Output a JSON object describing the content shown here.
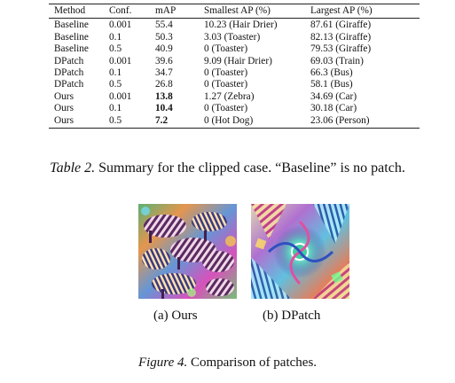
{
  "table": {
    "headers": [
      "Method",
      "Conf.",
      "mAP",
      "Smallest AP (%)",
      "Largest AP (%)"
    ],
    "rows": [
      {
        "method": "Baseline",
        "conf": "0.001",
        "map": "55.4",
        "smallest": "10.23 (Hair Drier)",
        "largest": "87.61 (Giraffe)",
        "bold_map": false
      },
      {
        "method": "Baseline",
        "conf": "0.1",
        "map": "50.3",
        "smallest": "3.03 (Toaster)",
        "largest": "82.13 (Giraffe)",
        "bold_map": false
      },
      {
        "method": "Baseline",
        "conf": "0.5",
        "map": "40.9",
        "smallest": "0 (Toaster)",
        "largest": "79.53 (Giraffe)",
        "bold_map": false
      },
      {
        "method": "DPatch",
        "conf": "0.001",
        "map": "39.6",
        "smallest": "9.09 (Hair Drier)",
        "largest": "69.03 (Train)",
        "bold_map": false
      },
      {
        "method": "DPatch",
        "conf": "0.1",
        "map": "34.7",
        "smallest": "0 (Toaster)",
        "largest": "66.3 (Bus)",
        "bold_map": false
      },
      {
        "method": "DPatch",
        "conf": "0.5",
        "map": "26.8",
        "smallest": "0 (Toaster)",
        "largest": "58.1 (Bus)",
        "bold_map": false
      },
      {
        "method": "Ours",
        "conf": "0.001",
        "map": "13.8",
        "smallest": "1.27 (Zebra)",
        "largest": "34.69 (Car)",
        "bold_map": true
      },
      {
        "method": "Ours",
        "conf": "0.1",
        "map": "10.4",
        "smallest": "0 (Toaster)",
        "largest": "30.18 (Car)",
        "bold_map": true
      },
      {
        "method": "Ours",
        "conf": "0.5",
        "map": "7.2",
        "smallest": "0 (Hot Dog)",
        "largest": "23.06 (Person)",
        "bold_map": true
      }
    ]
  },
  "table_caption": {
    "label": "Table 2.",
    "text": " Summary for the clipped case. “Baseline” is no patch."
  },
  "figure": {
    "subcaption_ours": "(a) Ours",
    "subcaption_dpatch": "(b) DPatch",
    "caption_label": "Figure 4.",
    "caption_text": " Comparison of patches."
  }
}
